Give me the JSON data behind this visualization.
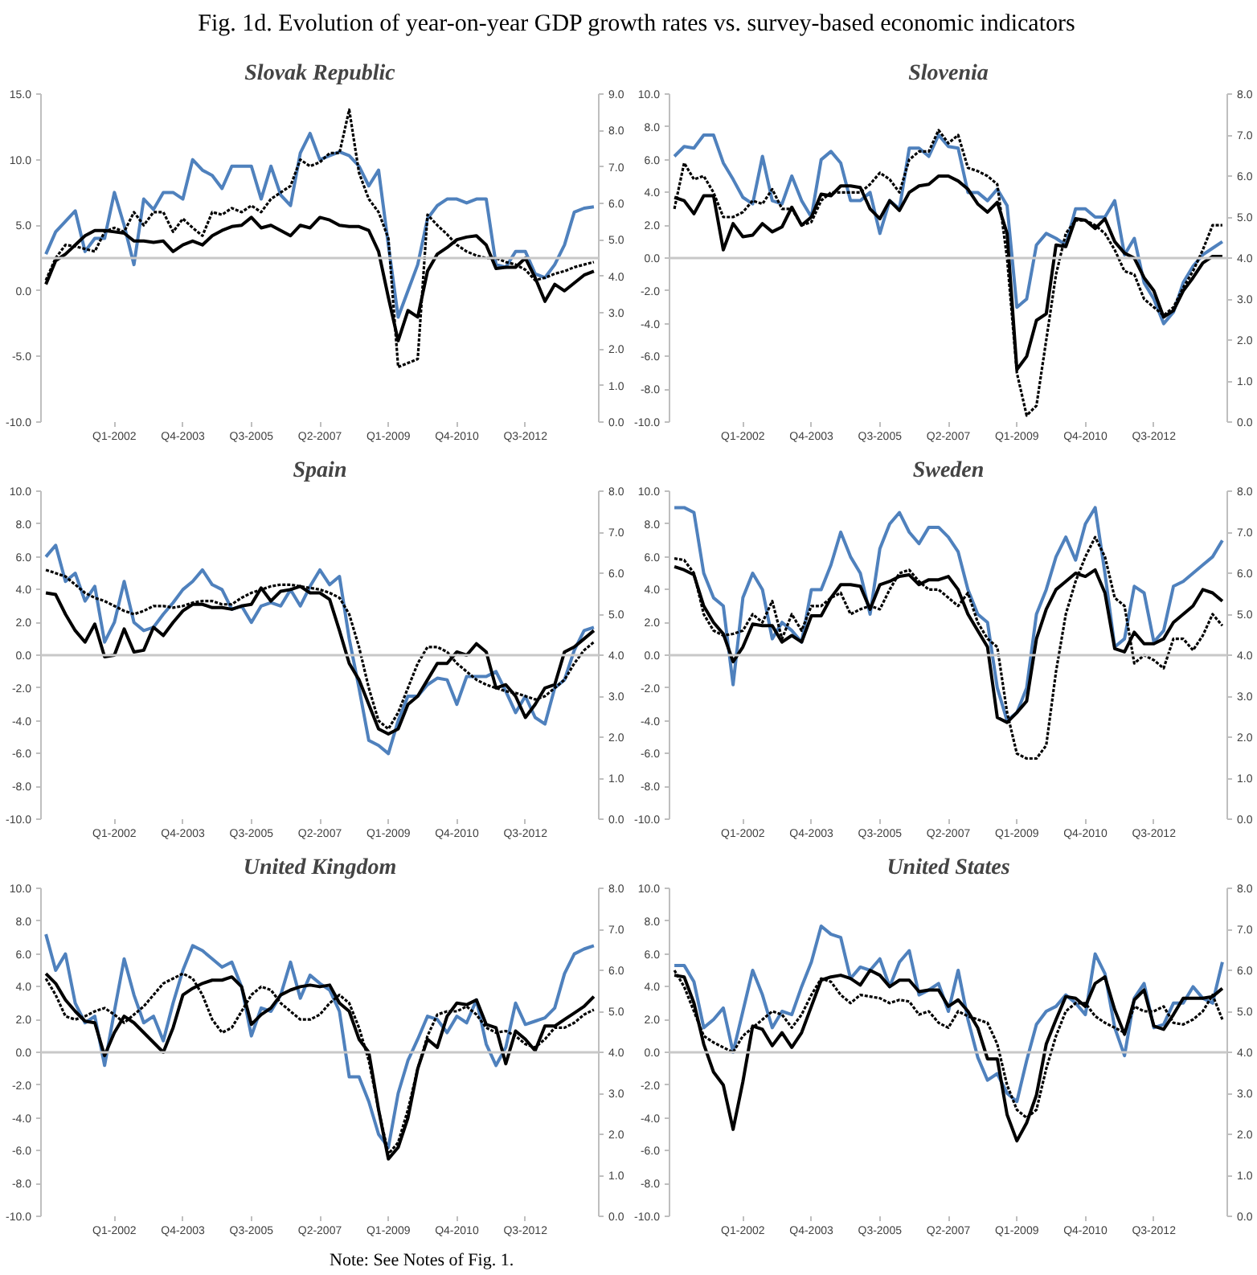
{
  "chart_data": [
    {
      "type": "line",
      "title": "Slovak Republic",
      "annotations": [
        "Fig. 1d. Evolution of year-on-year GDP growth rates vs. survey-based economic indicators"
      ],
      "categories": [
        null,
        null,
        null,
        null,
        null,
        null,
        null,
        "Q1-2002",
        null,
        null,
        null,
        null,
        null,
        null,
        "Q4-2003",
        null,
        null,
        null,
        null,
        null,
        null,
        "Q3-2005",
        null,
        null,
        null,
        null,
        null,
        null,
        "Q2-2007",
        null,
        null,
        null,
        null,
        null,
        null,
        "Q1-2009",
        null,
        null,
        null,
        null,
        null,
        null,
        "Q4-2010",
        null,
        null,
        null,
        null,
        null,
        null,
        "Q3-2012",
        null,
        null,
        null,
        null,
        null,
        null,
        null
      ],
      "ylim": [
        -10,
        15
      ],
      "yticks": [
        {
          "value": -10,
          "label": "-10.0"
        },
        {
          "value": -5,
          "label": "-5.0"
        },
        {
          "value": 0,
          "label": "0.0"
        },
        {
          "value": 5,
          "label": "5.0"
        },
        {
          "value": 10,
          "label": "10.0"
        },
        {
          "value": 15,
          "label": "15.0"
        }
      ],
      "y2lim": [
        0,
        9
      ],
      "y2ticks": [
        {
          "value": 0,
          "label": "0.0"
        },
        {
          "value": 1,
          "label": "1.0"
        },
        {
          "value": 2,
          "label": "2.0"
        },
        {
          "value": 3,
          "label": "3.0"
        },
        {
          "value": 4,
          "label": "4.0"
        },
        {
          "value": 5,
          "label": "5.0"
        },
        {
          "value": 6,
          "label": "6.0"
        },
        {
          "value": 7,
          "label": "7.0"
        },
        {
          "value": 8,
          "label": "8.0"
        },
        {
          "value": 9,
          "label": "9.0"
        }
      ],
      "ref_lines": [
        {
          "axis": "y",
          "value": 2.5,
          "color": "#c8c8c8"
        }
      ],
      "series": [
        {
          "color": "#4f81bd",
          "values": [
            2.8,
            4.5,
            5.3,
            6.1,
            3.0,
            4.0,
            4.0,
            7.5,
            5.0,
            2.0,
            7.0,
            6.2,
            7.5,
            7.5,
            7.0,
            10.0,
            9.2,
            8.8,
            7.8,
            9.5,
            9.5,
            9.5,
            7.0,
            9.5,
            7.3,
            6.5,
            10.5,
            12.0,
            10.0,
            10.3,
            10.6,
            10.3,
            9.5,
            8.0,
            9.2,
            3.5,
            -2.0,
            0.0,
            2.0,
            5.5,
            6.5,
            7.0,
            7.0,
            6.7,
            7.0,
            7.0,
            2.0,
            1.8,
            3.0,
            3.0,
            1.3,
            1.0,
            2.0,
            3.5,
            6.0,
            6.3,
            6.4
          ]
        },
        {
          "color": "#000000",
          "values": [
            0.5,
            2.3,
            2.8,
            3.5,
            4.2,
            4.6,
            4.6,
            4.5,
            4.4,
            3.8,
            3.8,
            3.7,
            3.8,
            3.0,
            3.5,
            3.8,
            3.5,
            4.2,
            4.6,
            4.9,
            5.0,
            5.6,
            4.8,
            5.0,
            4.6,
            4.2,
            5.0,
            4.8,
            5.6,
            5.4,
            5.0,
            4.9,
            4.9,
            4.6,
            3.0,
            -0.5,
            -3.8,
            -1.5,
            -2.0,
            1.5,
            2.8,
            3.3,
            3.9,
            4.1,
            4.2,
            3.5,
            1.7,
            1.8,
            1.8,
            2.5,
            1.0,
            -0.8,
            0.5,
            0.0,
            0.6,
            1.2,
            1.5
          ]
        },
        {
          "color": "#000000",
          "line_style": "dotted",
          "axis": "y2",
          "values": [
            3.89,
            4.5,
            4.86,
            4.82,
            4.75,
            4.68,
            5.22,
            5.33,
            5.22,
            5.76,
            5.4,
            5.76,
            5.76,
            5.22,
            5.58,
            5.33,
            5.11,
            5.76,
            5.69,
            5.87,
            5.76,
            5.94,
            5.76,
            6.12,
            6.3,
            6.48,
            7.2,
            7.02,
            7.13,
            7.38,
            7.38,
            8.57,
            6.84,
            6.12,
            5.76,
            5.04,
            1.51,
            1.62,
            1.73,
            5.69,
            5.4,
            5.15,
            4.86,
            4.68,
            4.57,
            4.5,
            4.5,
            4.39,
            4.32,
            4.18,
            3.89,
            3.96,
            4.07,
            4.14,
            4.25,
            4.32,
            4.39
          ]
        }
      ]
    },
    {
      "type": "line",
      "title": "Slovenia",
      "categories": [
        null,
        null,
        null,
        null,
        null,
        null,
        null,
        "Q1-2002",
        null,
        null,
        null,
        null,
        null,
        null,
        "Q4-2003",
        null,
        null,
        null,
        null,
        null,
        null,
        "Q3-2005",
        null,
        null,
        null,
        null,
        null,
        null,
        "Q2-2007",
        null,
        null,
        null,
        null,
        null,
        null,
        "Q1-2009",
        null,
        null,
        null,
        null,
        null,
        null,
        "Q4-2010",
        null,
        null,
        null,
        null,
        null,
        null,
        "Q3-2012",
        null,
        null,
        null,
        null,
        null,
        null,
        null
      ],
      "ylim": [
        -10,
        10
      ],
      "yticks": [
        {
          "value": -10,
          "label": "-10.0"
        },
        {
          "value": -8,
          "label": "-8.0"
        },
        {
          "value": -6,
          "label": "-6.0"
        },
        {
          "value": -4,
          "label": "-4.0"
        },
        {
          "value": -2,
          "label": "-2.0"
        },
        {
          "value": 0,
          "label": "0.0"
        },
        {
          "value": 2,
          "label": "2.0"
        },
        {
          "value": 4,
          "label": "4.0"
        },
        {
          "value": 6,
          "label": "6.0"
        },
        {
          "value": 8,
          "label": "8.0"
        },
        {
          "value": 10,
          "label": "10.0"
        }
      ],
      "y2lim": [
        0,
        8
      ],
      "y2ticks": [
        {
          "value": 0,
          "label": "0.0"
        },
        {
          "value": 1,
          "label": "1.0"
        },
        {
          "value": 2,
          "label": "2.0"
        },
        {
          "value": 3,
          "label": "3.0"
        },
        {
          "value": 4,
          "label": "4.0"
        },
        {
          "value": 5,
          "label": "5.0"
        },
        {
          "value": 6,
          "label": "6.0"
        },
        {
          "value": 7,
          "label": "7.0"
        },
        {
          "value": 8,
          "label": "8.0"
        }
      ],
      "ref_lines": [
        {
          "axis": "y",
          "value": 0,
          "color": "#c8c8c8"
        }
      ],
      "series": [
        {
          "color": "#4f81bd",
          "values": [
            6.2,
            6.8,
            6.7,
            7.5,
            7.5,
            5.8,
            4.8,
            3.7,
            3.3,
            6.2,
            3.5,
            3.3,
            5.0,
            3.5,
            2.5,
            6.0,
            6.5,
            5.8,
            3.5,
            3.5,
            4.0,
            1.5,
            3.5,
            3.0,
            6.7,
            6.7,
            6.2,
            7.5,
            6.8,
            6.7,
            4.0,
            4.0,
            3.5,
            4.2,
            3.2,
            -3.0,
            -2.5,
            0.8,
            1.5,
            1.2,
            0.8,
            3.0,
            3.0,
            2.5,
            2.5,
            3.5,
            0.2,
            1.2,
            -1.5,
            -2.5,
            -4.0,
            -3.3,
            -1.5,
            -0.5,
            0.2,
            0.6,
            1.0
          ]
        },
        {
          "color": "#000000",
          "values": [
            3.7,
            3.5,
            2.7,
            3.8,
            3.8,
            0.5,
            2.1,
            1.3,
            1.4,
            2.1,
            1.6,
            1.9,
            3.1,
            2.0,
            2.5,
            3.9,
            3.8,
            4.4,
            4.4,
            4.3,
            3.0,
            2.4,
            3.5,
            2.9,
            4.0,
            4.4,
            4.5,
            5.0,
            5.0,
            4.7,
            4.2,
            3.3,
            2.8,
            3.4,
            1.5,
            -6.8,
            -6.0,
            -3.8,
            -3.4,
            0.8,
            0.7,
            2.4,
            2.3,
            1.8,
            2.4,
            1.0,
            0.3,
            0.0,
            -1.2,
            -2.0,
            -3.6,
            -3.2,
            -2.0,
            -1.2,
            -0.3,
            0.1,
            0.1
          ]
        },
        {
          "color": "#000000",
          "line_style": "dotted",
          "axis": "y2",
          "values": [
            5.2,
            6.32,
            5.92,
            6.0,
            5.6,
            5.0,
            5.0,
            5.12,
            5.4,
            5.32,
            5.68,
            5.2,
            5.2,
            4.8,
            4.88,
            5.4,
            5.6,
            5.6,
            5.6,
            5.6,
            5.8,
            6.08,
            5.92,
            5.6,
            6.4,
            6.6,
            6.6,
            7.12,
            6.8,
            7.0,
            6.2,
            6.12,
            6.0,
            5.8,
            4.0,
            1.2,
            0.16,
            0.4,
            2.0,
            3.6,
            4.6,
            4.92,
            4.92,
            4.8,
            4.6,
            4.2,
            3.68,
            3.6,
            3.0,
            2.8,
            2.6,
            2.8,
            3.28,
            3.68,
            4.2,
            4.8,
            4.8
          ]
        }
      ]
    },
    {
      "type": "line",
      "title": "Spain",
      "categories": [
        null,
        null,
        null,
        null,
        null,
        null,
        null,
        "Q1-2002",
        null,
        null,
        null,
        null,
        null,
        null,
        "Q4-2003",
        null,
        null,
        null,
        null,
        null,
        null,
        "Q3-2005",
        null,
        null,
        null,
        null,
        null,
        null,
        "Q2-2007",
        null,
        null,
        null,
        null,
        null,
        null,
        "Q1-2009",
        null,
        null,
        null,
        null,
        null,
        null,
        "Q4-2010",
        null,
        null,
        null,
        null,
        null,
        null,
        "Q3-2012",
        null,
        null,
        null,
        null,
        null,
        null,
        null
      ],
      "ylim": [
        -10,
        10
      ],
      "yticks": [
        {
          "value": -10,
          "label": "-10.0"
        },
        {
          "value": -8,
          "label": "-8.0"
        },
        {
          "value": -6,
          "label": "-6.0"
        },
        {
          "value": -4,
          "label": "-4.0"
        },
        {
          "value": -2,
          "label": "-2.0"
        },
        {
          "value": 0,
          "label": "0.0"
        },
        {
          "value": 2,
          "label": "2.0"
        },
        {
          "value": 4,
          "label": "4.0"
        },
        {
          "value": 6,
          "label": "6.0"
        },
        {
          "value": 8,
          "label": "8.0"
        },
        {
          "value": 10,
          "label": "10.0"
        }
      ],
      "y2lim": [
        0,
        8
      ],
      "y2ticks": [
        {
          "value": 0,
          "label": "0.0"
        },
        {
          "value": 1,
          "label": "1.0"
        },
        {
          "value": 2,
          "label": "2.0"
        },
        {
          "value": 3,
          "label": "3.0"
        },
        {
          "value": 4,
          "label": "4.0"
        },
        {
          "value": 5,
          "label": "5.0"
        },
        {
          "value": 6,
          "label": "6.0"
        },
        {
          "value": 7,
          "label": "7.0"
        },
        {
          "value": 8,
          "label": "8.0"
        }
      ],
      "ref_lines": [
        {
          "axis": "y",
          "value": 0,
          "color": "#c8c8c8"
        }
      ],
      "series": [
        {
          "color": "#4f81bd",
          "values": [
            6.0,
            6.7,
            4.5,
            5.0,
            3.3,
            4.2,
            0.8,
            2.0,
            4.5,
            2.0,
            1.5,
            1.7,
            2.5,
            3.2,
            4.0,
            4.5,
            5.2,
            4.3,
            4.0,
            2.8,
            3.0,
            2.0,
            3.0,
            3.2,
            3.0,
            4.0,
            3.0,
            4.2,
            5.2,
            4.3,
            4.8,
            1.0,
            -2.0,
            -5.2,
            -5.5,
            -6.0,
            -4.0,
            -2.5,
            -2.5,
            -1.8,
            -1.4,
            -1.5,
            -3.0,
            -1.3,
            -1.3,
            -1.3,
            -1.0,
            -2.2,
            -3.5,
            -2.5,
            -3.8,
            -4.2,
            -2.0,
            -1.5,
            0.3,
            1.5,
            1.7
          ]
        },
        {
          "color": "#000000",
          "values": [
            3.8,
            3.7,
            2.5,
            1.5,
            0.8,
            1.9,
            -0.1,
            0.0,
            1.6,
            0.2,
            0.3,
            1.7,
            1.2,
            2.0,
            2.7,
            3.1,
            3.1,
            2.9,
            2.9,
            2.8,
            3.0,
            3.1,
            4.1,
            3.3,
            3.9,
            4.0,
            4.2,
            3.8,
            3.8,
            3.4,
            1.5,
            -0.5,
            -1.5,
            -3.0,
            -4.5,
            -4.8,
            -4.5,
            -3.0,
            -2.5,
            -1.5,
            -0.5,
            -0.5,
            0.2,
            0.0,
            0.7,
            0.2,
            -2.0,
            -1.8,
            -2.5,
            -3.8,
            -3.0,
            -2.0,
            -1.8,
            0.2,
            0.5,
            1.0,
            1.5
          ]
        },
        {
          "color": "#000000",
          "line_style": "dotted",
          "axis": "y2",
          "values": [
            6.08,
            6.0,
            5.92,
            5.72,
            5.52,
            5.4,
            5.32,
            5.2,
            5.08,
            5.0,
            5.08,
            5.2,
            5.2,
            5.16,
            5.2,
            5.28,
            5.32,
            5.32,
            5.24,
            5.24,
            5.4,
            5.52,
            5.6,
            5.68,
            5.72,
            5.72,
            5.68,
            5.64,
            5.6,
            5.52,
            5.4,
            5.0,
            4.2,
            3.2,
            2.4,
            2.2,
            2.6,
            3.2,
            3.8,
            4.2,
            4.2,
            4.08,
            3.8,
            3.6,
            3.4,
            3.28,
            3.2,
            3.12,
            3.08,
            3.0,
            2.92,
            3.0,
            3.2,
            3.4,
            3.8,
            4.12,
            4.32
          ]
        }
      ]
    },
    {
      "type": "line",
      "title": "Sweden",
      "categories": [
        null,
        null,
        null,
        null,
        null,
        null,
        null,
        "Q1-2002",
        null,
        null,
        null,
        null,
        null,
        null,
        "Q4-2003",
        null,
        null,
        null,
        null,
        null,
        null,
        "Q3-2005",
        null,
        null,
        null,
        null,
        null,
        null,
        "Q2-2007",
        null,
        null,
        null,
        null,
        null,
        null,
        "Q1-2009",
        null,
        null,
        null,
        null,
        null,
        null,
        "Q4-2010",
        null,
        null,
        null,
        null,
        null,
        null,
        "Q3-2012",
        null,
        null,
        null,
        null,
        null,
        null,
        null
      ],
      "ylim": [
        -10,
        10
      ],
      "yticks": [
        {
          "value": -10,
          "label": "-10.0"
        },
        {
          "value": -8,
          "label": "-8.0"
        },
        {
          "value": -6,
          "label": "-6.0"
        },
        {
          "value": -4,
          "label": "-4.0"
        },
        {
          "value": -2,
          "label": "-2.0"
        },
        {
          "value": 0,
          "label": "0.0"
        },
        {
          "value": 2,
          "label": "2.0"
        },
        {
          "value": 4,
          "label": "4.0"
        },
        {
          "value": 6,
          "label": "6.0"
        },
        {
          "value": 8,
          "label": "8.0"
        },
        {
          "value": 10,
          "label": "10.0"
        }
      ],
      "y2lim": [
        0,
        8
      ],
      "y2ticks": [
        {
          "value": 0,
          "label": "0.0"
        },
        {
          "value": 1,
          "label": "1.0"
        },
        {
          "value": 2,
          "label": "2.0"
        },
        {
          "value": 3,
          "label": "3.0"
        },
        {
          "value": 4,
          "label": "4.0"
        },
        {
          "value": 5,
          "label": "5.0"
        },
        {
          "value": 6,
          "label": "6.0"
        },
        {
          "value": 7,
          "label": "7.0"
        },
        {
          "value": 8,
          "label": "8.0"
        }
      ],
      "ref_lines": [
        {
          "axis": "y",
          "value": 0,
          "color": "#c8c8c8"
        }
      ],
      "series": [
        {
          "color": "#4f81bd",
          "values": [
            9.0,
            9.0,
            8.7,
            5.0,
            3.5,
            3.0,
            -1.8,
            3.5,
            5.0,
            4.0,
            1.0,
            2.0,
            1.5,
            0.8,
            4.0,
            4.0,
            5.5,
            7.5,
            6.0,
            5.0,
            2.5,
            6.5,
            8.0,
            8.7,
            7.5,
            6.8,
            7.8,
            7.8,
            7.2,
            6.3,
            4.0,
            2.5,
            2.0,
            -2.0,
            -4.0,
            -3.5,
            -2.0,
            2.5,
            4.0,
            6.0,
            7.2,
            5.8,
            8.0,
            9.0,
            5.0,
            0.5,
            1.0,
            4.2,
            3.8,
            0.8,
            1.5,
            4.2,
            4.5,
            5.0,
            5.5,
            6.0,
            7.0
          ]
        },
        {
          "color": "#000000",
          "values": [
            5.4,
            5.2,
            4.9,
            3.0,
            2.0,
            1.3,
            -0.4,
            0.5,
            1.9,
            1.8,
            1.8,
            0.8,
            1.2,
            0.8,
            2.4,
            2.4,
            3.5,
            4.3,
            4.3,
            4.2,
            2.8,
            4.3,
            4.5,
            4.8,
            4.9,
            4.3,
            4.6,
            4.6,
            4.8,
            4.0,
            2.5,
            1.5,
            0.5,
            -3.8,
            -4.1,
            -3.5,
            -2.8,
            1.0,
            2.8,
            4.0,
            4.5,
            5.0,
            4.8,
            5.2,
            3.8,
            0.4,
            0.2,
            1.4,
            0.7,
            0.7,
            1.0,
            2.0,
            2.5,
            3.0,
            4.0,
            3.8,
            3.3
          ]
        },
        {
          "color": "#000000",
          "line_style": "dotted",
          "axis": "y2",
          "values": [
            6.36,
            6.32,
            6.0,
            5.0,
            4.6,
            4.48,
            4.52,
            4.6,
            5.0,
            4.8,
            5.32,
            4.4,
            5.0,
            4.6,
            5.2,
            5.2,
            5.4,
            5.52,
            5.0,
            5.12,
            5.2,
            5.12,
            5.6,
            6.0,
            6.08,
            5.8,
            5.6,
            5.6,
            5.4,
            5.2,
            5.52,
            4.8,
            4.4,
            4.2,
            2.6,
            1.6,
            1.48,
            1.48,
            1.8,
            3.6,
            5.0,
            5.8,
            6.4,
            6.88,
            6.4,
            5.4,
            5.2,
            3.8,
            4.0,
            3.88,
            3.68,
            4.4,
            4.4,
            4.12,
            4.48,
            5.0,
            4.72
          ]
        }
      ]
    },
    {
      "type": "line",
      "title": "United Kingdom",
      "categories": [
        null,
        null,
        null,
        null,
        null,
        null,
        null,
        "Q1-2002",
        null,
        null,
        null,
        null,
        null,
        null,
        "Q4-2003",
        null,
        null,
        null,
        null,
        null,
        null,
        "Q3-2005",
        null,
        null,
        null,
        null,
        null,
        null,
        "Q2-2007",
        null,
        null,
        null,
        null,
        null,
        null,
        "Q1-2009",
        null,
        null,
        null,
        null,
        null,
        null,
        "Q4-2010",
        null,
        null,
        null,
        null,
        null,
        null,
        "Q3-2012",
        null,
        null,
        null,
        null,
        null,
        null,
        null
      ],
      "ylim": [
        -10,
        10
      ],
      "yticks": [
        {
          "value": -10,
          "label": "-10.0"
        },
        {
          "value": -8,
          "label": "-8.0"
        },
        {
          "value": -6,
          "label": "-6.0"
        },
        {
          "value": -4,
          "label": "-4.0"
        },
        {
          "value": -2,
          "label": "-2.0"
        },
        {
          "value": 0,
          "label": "0.0"
        },
        {
          "value": 2,
          "label": "2.0"
        },
        {
          "value": 4,
          "label": "4.0"
        },
        {
          "value": 6,
          "label": "6.0"
        },
        {
          "value": 8,
          "label": "8.0"
        },
        {
          "value": 10,
          "label": "10.0"
        }
      ],
      "y2lim": [
        0,
        8
      ],
      "y2ticks": [
        {
          "value": 0,
          "label": "0.0"
        },
        {
          "value": 1,
          "label": "1.0"
        },
        {
          "value": 2,
          "label": "2.0"
        },
        {
          "value": 3,
          "label": "3.0"
        },
        {
          "value": 4,
          "label": "4.0"
        },
        {
          "value": 5,
          "label": "5.0"
        },
        {
          "value": 6,
          "label": "6.0"
        },
        {
          "value": 7,
          "label": "7.0"
        },
        {
          "value": 8,
          "label": "8.0"
        }
      ],
      "ref_lines": [
        {
          "axis": "y",
          "value": 0,
          "color": "#c8c8c8"
        }
      ],
      "series": [
        {
          "color": "#4f81bd",
          "values": [
            7.2,
            5.0,
            6.0,
            3.0,
            1.8,
            2.2,
            -0.8,
            2.5,
            5.7,
            3.5,
            1.8,
            2.2,
            0.7,
            3.0,
            5.0,
            6.5,
            6.2,
            5.7,
            5.2,
            5.5,
            4.0,
            1.0,
            2.7,
            2.5,
            3.5,
            5.5,
            3.3,
            4.7,
            4.2,
            3.8,
            2.5,
            -1.5,
            -1.5,
            -3.0,
            -5.0,
            -5.8,
            -2.5,
            -0.5,
            0.8,
            2.2,
            2.0,
            1.2,
            2.2,
            1.8,
            3.2,
            0.5,
            -0.8,
            0.3,
            3.0,
            1.7,
            1.9,
            2.1,
            2.7,
            4.8,
            6.0,
            6.3,
            6.5
          ]
        },
        {
          "color": "#000000",
          "values": [
            4.8,
            4.2,
            3.2,
            2.5,
            1.9,
            1.8,
            -0.2,
            1.2,
            2.2,
            1.8,
            1.2,
            0.6,
            0.0,
            1.5,
            3.5,
            3.9,
            4.2,
            4.4,
            4.4,
            4.6,
            4.0,
            1.7,
            2.3,
            2.7,
            3.5,
            3.8,
            4.0,
            4.1,
            4.0,
            4.1,
            3.0,
            2.5,
            0.8,
            0.0,
            -3.5,
            -6.5,
            -5.8,
            -4.0,
            -1.0,
            0.8,
            0.3,
            2.2,
            3.0,
            2.9,
            3.2,
            1.7,
            1.5,
            -0.7,
            1.3,
            0.8,
            0.1,
            1.6,
            1.6,
            2.0,
            2.4,
            2.8,
            3.4
          ]
        },
        {
          "color": "#000000",
          "line_style": "dotted",
          "axis": "y2",
          "values": [
            5.8,
            5.4,
            4.88,
            4.8,
            4.88,
            5.0,
            5.08,
            4.92,
            4.72,
            4.92,
            5.12,
            5.4,
            5.68,
            5.8,
            5.92,
            5.8,
            5.4,
            4.8,
            4.48,
            4.6,
            5.0,
            5.4,
            5.6,
            5.52,
            5.2,
            5.0,
            4.8,
            4.8,
            4.92,
            5.2,
            5.4,
            5.2,
            4.6,
            3.8,
            2.6,
            1.52,
            1.8,
            2.6,
            3.6,
            4.4,
            4.92,
            5.0,
            5.0,
            5.12,
            4.92,
            4.6,
            4.48,
            4.52,
            4.4,
            4.2,
            4.12,
            4.32,
            4.6,
            4.6,
            4.72,
            4.92,
            5.04
          ]
        }
      ]
    },
    {
      "type": "line",
      "title": "United States",
      "annotations": [
        "Note: See Notes of Fig. 1."
      ],
      "categories": [
        null,
        null,
        null,
        null,
        null,
        null,
        null,
        "Q1-2002",
        null,
        null,
        null,
        null,
        null,
        null,
        "Q4-2003",
        null,
        null,
        null,
        null,
        null,
        null,
        "Q3-2005",
        null,
        null,
        null,
        null,
        null,
        null,
        "Q2-2007",
        null,
        null,
        null,
        null,
        null,
        null,
        "Q1-2009",
        null,
        null,
        null,
        null,
        null,
        null,
        "Q4-2010",
        null,
        null,
        null,
        null,
        null,
        null,
        "Q3-2012",
        null,
        null,
        null,
        null,
        null,
        null,
        null
      ],
      "ylim": [
        -10,
        10
      ],
      "yticks": [
        {
          "value": -10,
          "label": "-10.0"
        },
        {
          "value": -8,
          "label": "-8.0"
        },
        {
          "value": -6,
          "label": "-6.0"
        },
        {
          "value": -4,
          "label": "-4.0"
        },
        {
          "value": -2,
          "label": "-2.0"
        },
        {
          "value": 0,
          "label": "0.0"
        },
        {
          "value": 2,
          "label": "2.0"
        },
        {
          "value": 4,
          "label": "4.0"
        },
        {
          "value": 6,
          "label": "6.0"
        },
        {
          "value": 8,
          "label": "8.0"
        },
        {
          "value": 10,
          "label": "10.0"
        }
      ],
      "y2lim": [
        0,
        8
      ],
      "y2ticks": [
        {
          "value": 0,
          "label": "0.0"
        },
        {
          "value": 1,
          "label": "1.0"
        },
        {
          "value": 2,
          "label": "2.0"
        },
        {
          "value": 3,
          "label": "3.0"
        },
        {
          "value": 4,
          "label": "4.0"
        },
        {
          "value": 5,
          "label": "5.0"
        },
        {
          "value": 6,
          "label": "6.0"
        },
        {
          "value": 7,
          "label": "7.0"
        },
        {
          "value": 8,
          "label": "8.0"
        }
      ],
      "ref_lines": [
        {
          "axis": "y",
          "value": 0,
          "color": "#c8c8c8"
        }
      ],
      "series": [
        {
          "color": "#4f81bd",
          "values": [
            5.3,
            5.3,
            4.3,
            1.5,
            2.0,
            2.7,
            0.0,
            2.5,
            5.0,
            3.5,
            1.5,
            2.5,
            2.3,
            4.0,
            5.5,
            7.7,
            7.2,
            7.0,
            4.5,
            5.2,
            5.0,
            5.7,
            4.0,
            5.5,
            6.2,
            3.5,
            3.8,
            4.2,
            2.5,
            5.0,
            2.0,
            -0.3,
            -1.7,
            -1.3,
            -2.5,
            -3.0,
            -0.5,
            1.7,
            2.5,
            2.8,
            3.5,
            3.0,
            2.3,
            6.0,
            4.8,
            1.5,
            -0.2,
            3.3,
            4.2,
            1.5,
            1.7,
            3.0,
            3.0,
            4.0,
            3.3,
            3.0,
            5.5
          ]
        },
        {
          "color": "#000000",
          "values": [
            4.7,
            4.6,
            3.0,
            0.5,
            -1.2,
            -2.0,
            -4.7,
            -1.8,
            1.6,
            1.4,
            0.4,
            1.2,
            0.3,
            1.2,
            2.8,
            4.4,
            4.6,
            4.7,
            4.5,
            4.1,
            5.0,
            4.7,
            4.0,
            4.4,
            4.4,
            3.7,
            3.8,
            3.8,
            2.8,
            3.2,
            2.5,
            1.5,
            -0.4,
            -0.4,
            -3.8,
            -5.4,
            -4.3,
            -2.6,
            0.5,
            2.0,
            3.4,
            3.3,
            2.8,
            4.2,
            4.6,
            2.6,
            1.1,
            3.2,
            3.8,
            1.6,
            1.4,
            2.3,
            3.3,
            3.3,
            3.3,
            3.4,
            3.9
          ]
        },
        {
          "color": "#000000",
          "line_style": "dotted",
          "axis": "y2",
          "values": [
            6.0,
            5.6,
            5.0,
            4.4,
            4.24,
            4.12,
            4.0,
            4.4,
            4.6,
            4.8,
            5.0,
            4.92,
            4.6,
            4.92,
            5.4,
            5.8,
            5.72,
            5.4,
            5.2,
            5.4,
            5.36,
            5.32,
            5.2,
            5.28,
            5.24,
            4.92,
            5.0,
            4.72,
            4.6,
            5.0,
            4.88,
            4.8,
            4.72,
            4.2,
            3.2,
            2.6,
            2.4,
            2.6,
            3.6,
            4.4,
            5.0,
            5.2,
            5.2,
            4.88,
            4.72,
            4.6,
            4.48,
            5.12,
            5.0,
            5.0,
            5.12,
            4.72,
            4.68,
            4.8,
            5.0,
            5.4,
            4.8
          ]
        }
      ]
    }
  ]
}
